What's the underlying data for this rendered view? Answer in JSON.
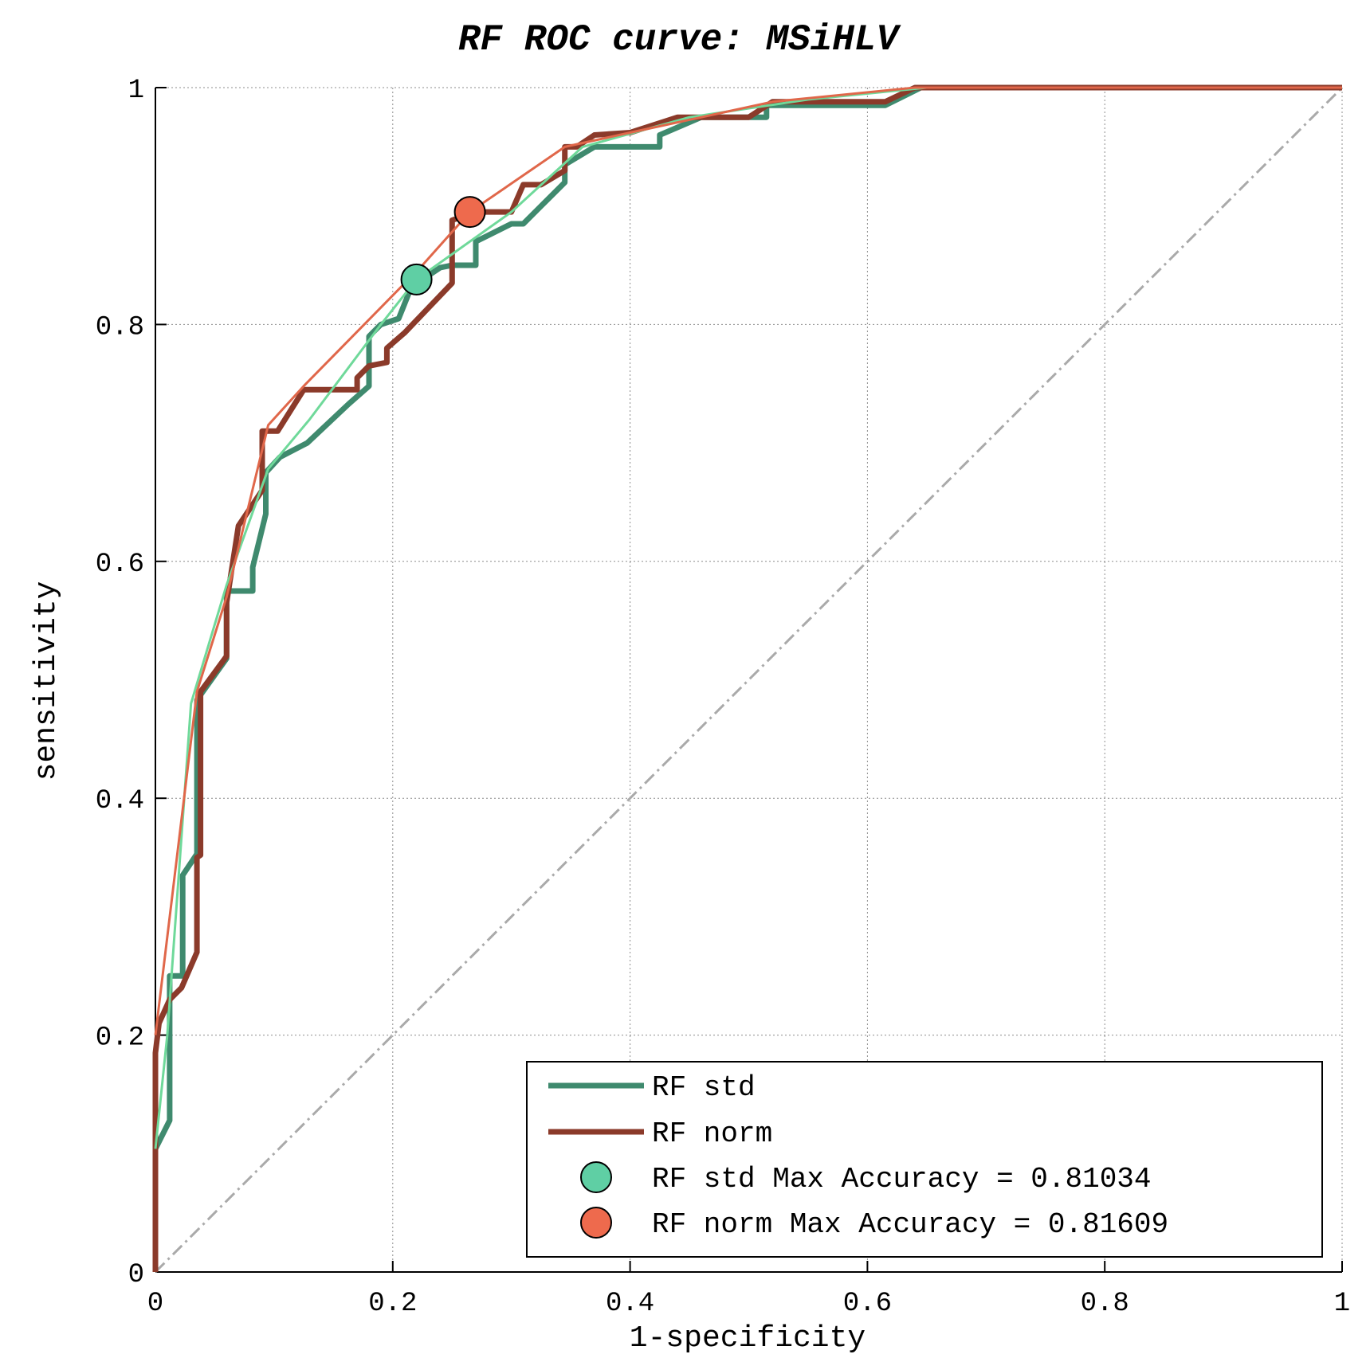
{
  "chart_data": {
    "type": "line",
    "title": "RF ROC curve: MSiHLV",
    "xlabel": "1-specificity",
    "ylabel": "sensitivity",
    "xlim": [
      0,
      1
    ],
    "ylim": [
      0,
      1
    ],
    "grid": true,
    "legend_position": "bottom-right",
    "xticks": [
      0,
      0.2,
      0.4,
      0.6,
      0.8,
      1
    ],
    "yticks": [
      0,
      0.2,
      0.4,
      0.6,
      0.8,
      1
    ],
    "xtick_labels": [
      "0",
      "0.2",
      "0.4",
      "0.6",
      "0.8",
      "1"
    ],
    "ytick_labels": [
      "0",
      "0.2",
      "0.4",
      "0.6",
      "0.8",
      "1"
    ],
    "colors": {
      "std": "#3f8a6e",
      "norm": "#8b3a2a",
      "std_fit": "#6fd99a",
      "norm_fit": "#e0674a",
      "std_point": "#5fcfa4",
      "norm_point": "#ee6a4d",
      "chance": "#aaaaaa"
    },
    "series": [
      {
        "name": "RF std",
        "role": "step",
        "x": [
          0,
          0,
          0.003,
          0.012,
          0.012,
          0.023,
          0.023,
          0.035,
          0.035,
          0.06,
          0.06,
          0.082,
          0.082,
          0.093,
          0.093,
          0.105,
          0.128,
          0.163,
          0.18,
          0.18,
          0.19,
          0.205,
          0.215,
          0.225,
          0.24,
          0.25,
          0.27,
          0.27,
          0.28,
          0.3,
          0.31,
          0.325,
          0.345,
          0.345,
          0.37,
          0.425,
          0.425,
          0.46,
          0.515,
          0.515,
          0.615,
          0.645,
          1
        ],
        "y": [
          0,
          0.104,
          0.11,
          0.128,
          0.25,
          0.25,
          0.335,
          0.353,
          0.483,
          0.518,
          0.575,
          0.575,
          0.595,
          0.64,
          0.675,
          0.688,
          0.7,
          0.733,
          0.748,
          0.79,
          0.8,
          0.805,
          0.83,
          0.838,
          0.848,
          0.85,
          0.85,
          0.87,
          0.875,
          0.885,
          0.885,
          0.9,
          0.92,
          0.935,
          0.95,
          0.95,
          0.96,
          0.975,
          0.975,
          0.985,
          0.985,
          1,
          1
        ]
      },
      {
        "name": "RF norm",
        "role": "step",
        "x": [
          0,
          0,
          0.003,
          0.012,
          0.022,
          0.035,
          0.035,
          0.038,
          0.038,
          0.06,
          0.06,
          0.07,
          0.09,
          0.09,
          0.103,
          0.125,
          0.17,
          0.17,
          0.18,
          0.195,
          0.195,
          0.21,
          0.25,
          0.25,
          0.27,
          0.275,
          0.3,
          0.31,
          0.325,
          0.345,
          0.345,
          0.355,
          0.37,
          0.4,
          0.44,
          0.46,
          0.5,
          0.52,
          0.615,
          0.64,
          1
        ],
        "y": [
          0,
          0.185,
          0.21,
          0.23,
          0.24,
          0.27,
          0.35,
          0.352,
          0.49,
          0.52,
          0.565,
          0.63,
          0.66,
          0.71,
          0.71,
          0.745,
          0.745,
          0.755,
          0.765,
          0.768,
          0.78,
          0.793,
          0.835,
          0.888,
          0.895,
          0.895,
          0.895,
          0.918,
          0.918,
          0.93,
          0.95,
          0.95,
          0.96,
          0.962,
          0.975,
          0.975,
          0.975,
          0.988,
          0.988,
          1,
          1
        ]
      },
      {
        "name": "",
        "role": "std-fit",
        "x": [
          0,
          0.01,
          0.03,
          0.06,
          0.095,
          0.13,
          0.19,
          0.22,
          0.3,
          0.36,
          0.45,
          0.55,
          0.65,
          1
        ],
        "y": [
          0.104,
          0.2,
          0.48,
          0.58,
          0.678,
          0.72,
          0.8,
          0.838,
          0.895,
          0.95,
          0.975,
          0.99,
          1,
          1
        ]
      },
      {
        "name": "",
        "role": "norm-fit",
        "x": [
          0,
          0.035,
          0.06,
          0.095,
          0.125,
          0.225,
          0.265,
          0.345,
          0.4,
          0.52,
          0.64,
          1
        ],
        "y": [
          0.2,
          0.49,
          0.57,
          0.715,
          0.748,
          0.85,
          0.895,
          0.95,
          0.962,
          0.988,
          1,
          1
        ]
      },
      {
        "name": "",
        "role": "chance",
        "x": [
          0,
          1
        ],
        "y": [
          0,
          1
        ]
      }
    ],
    "markers": [
      {
        "name": "RF std Max Accuracy = 0.81034",
        "x": 0.22,
        "y": 0.838
      },
      {
        "name": "RF norm Max Accuracy = 0.81609",
        "x": 0.265,
        "y": 0.895
      }
    ],
    "legend": [
      {
        "label": "RF std",
        "kind": "line",
        "color": "#3f8a6e"
      },
      {
        "label": "RF norm",
        "kind": "line",
        "color": "#8b3a2a"
      },
      {
        "label": "RF std Max Accuracy = 0.81034",
        "kind": "marker",
        "color": "#5fcfa4"
      },
      {
        "label": "RF norm Max Accuracy = 0.81609",
        "kind": "marker",
        "color": "#ee6a4d"
      }
    ]
  }
}
